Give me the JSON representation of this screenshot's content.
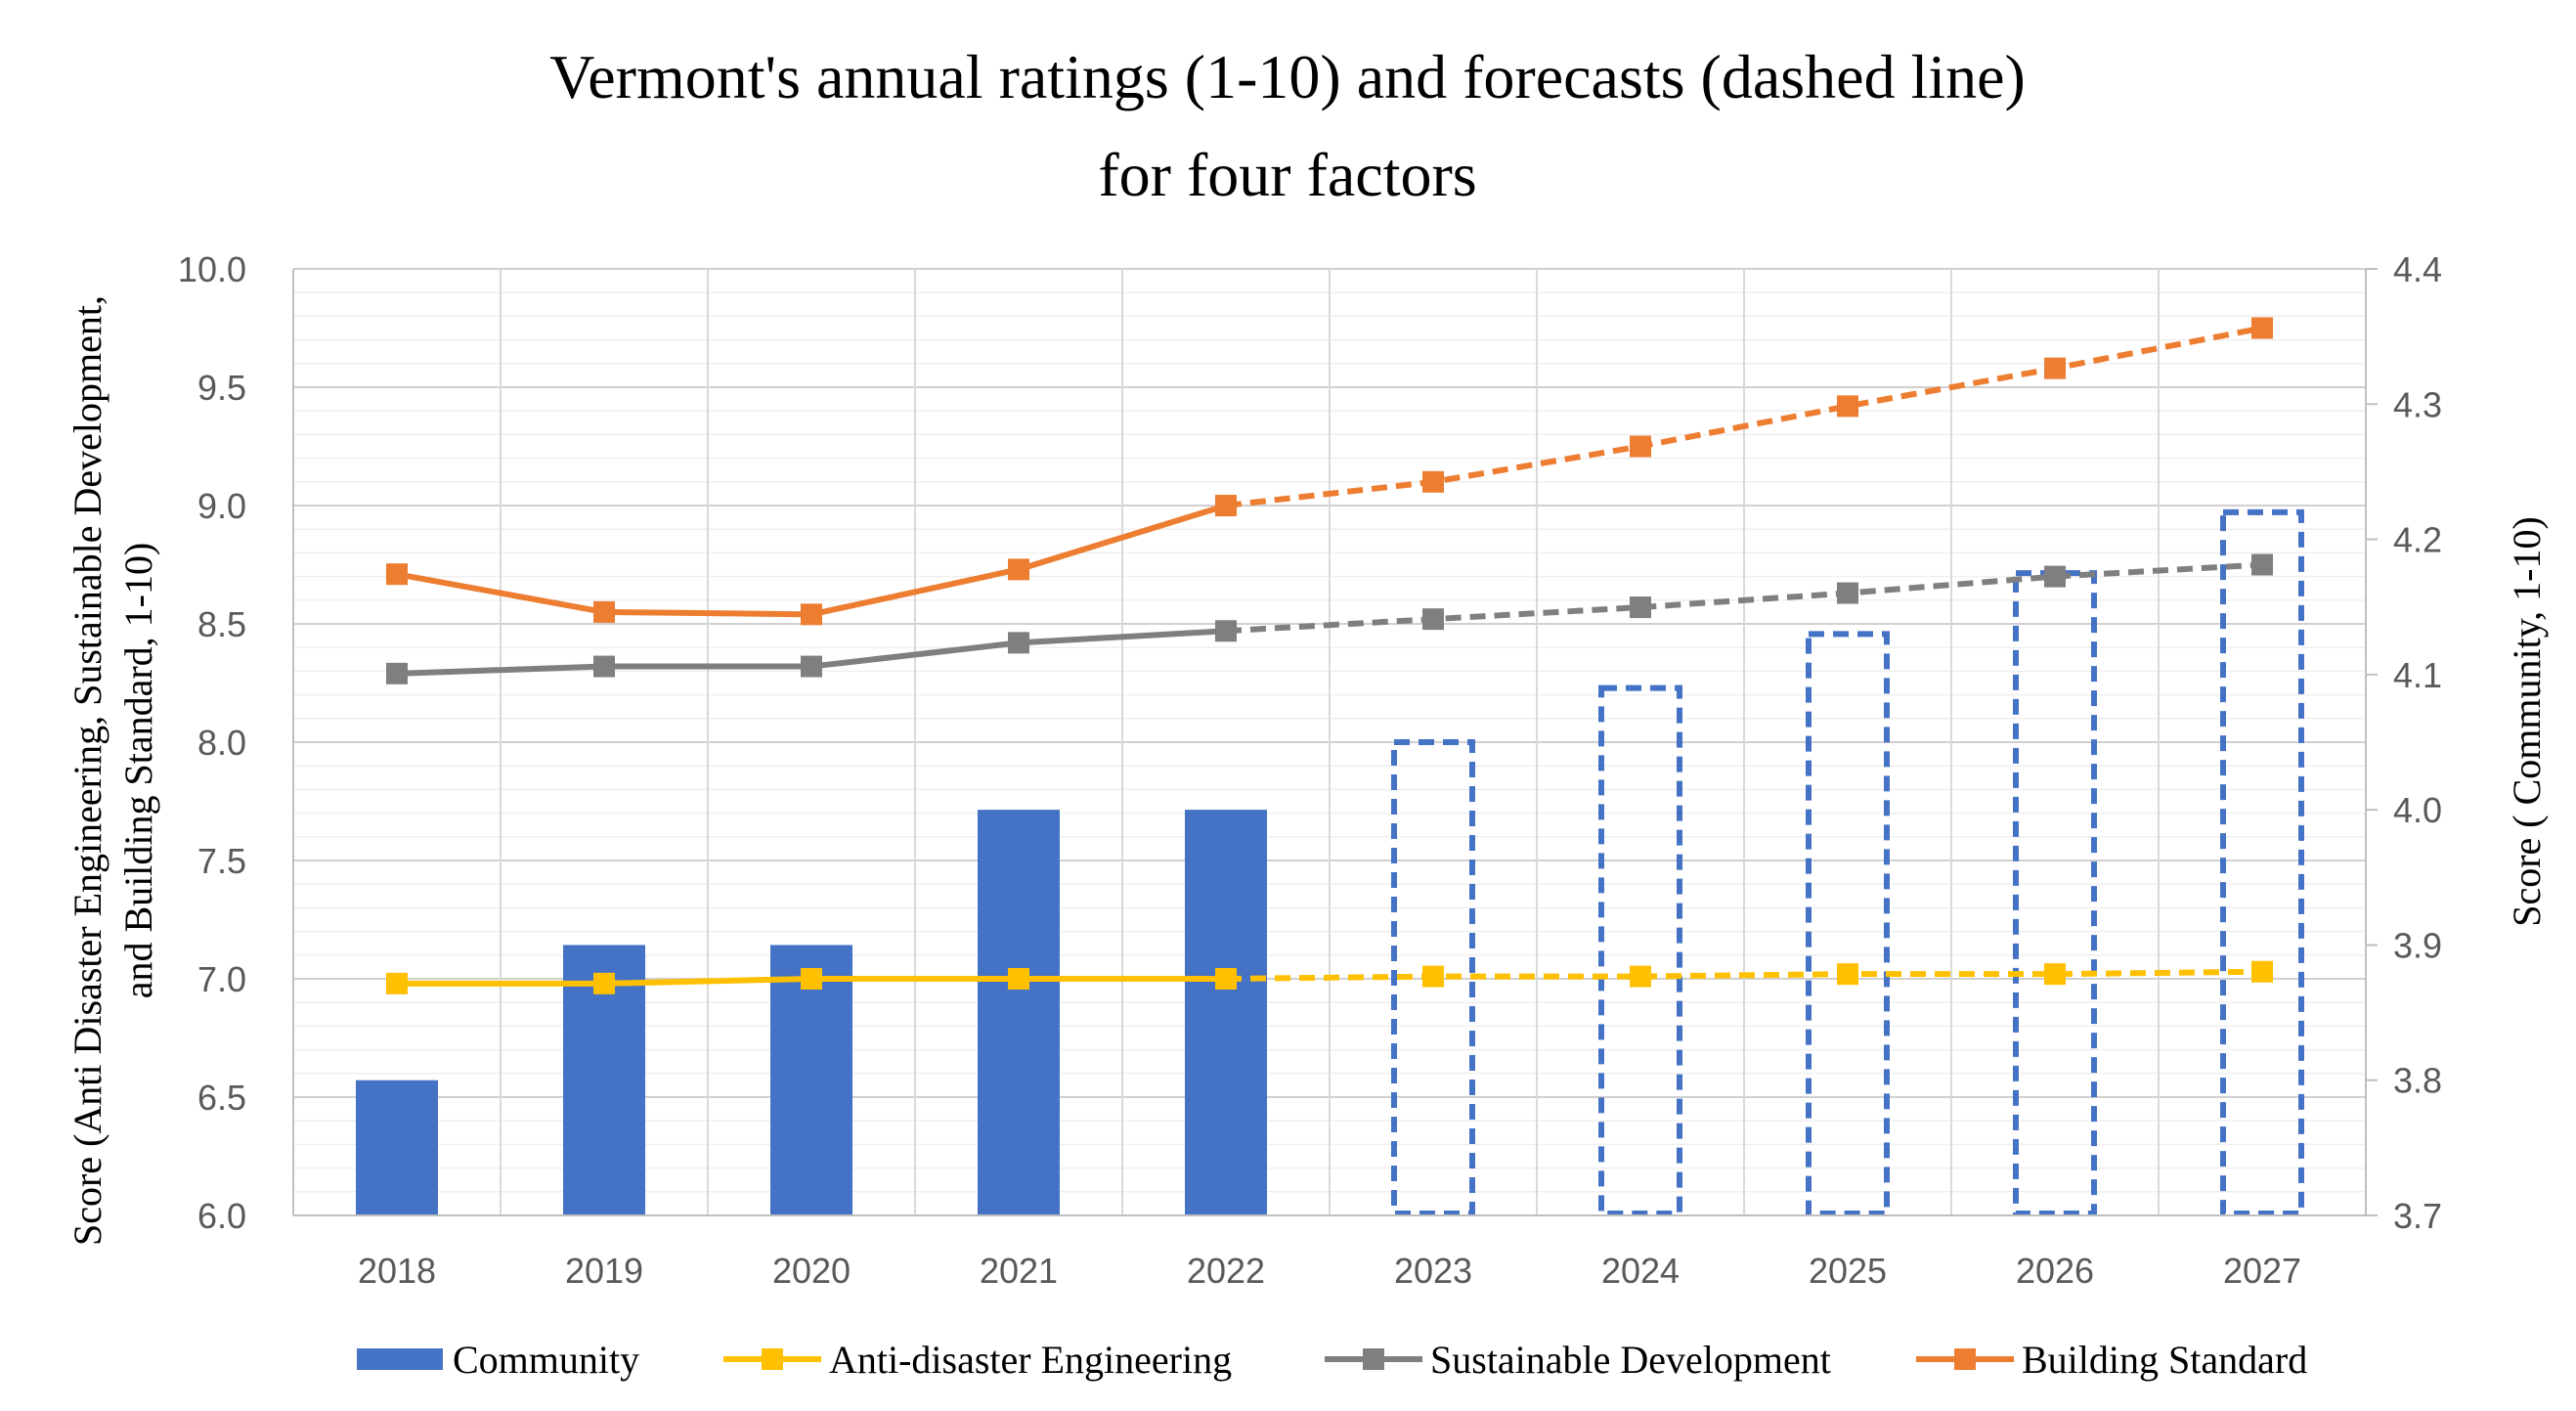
{
  "chart_data": {
    "type": "bar+line",
    "title_line1": "Vermont's annual ratings (1-10) and forecasts (dashed line)",
    "title_line2": "for four factors",
    "ylabel_left_line1": "Score (Anti Disaster Engineering,  Sustainable Development,",
    "ylabel_left_line2": "and Building Standard, 1-10)",
    "ylabel_right": "Score ( Community, 1-10)",
    "categories": [
      "2018",
      "2019",
      "2020",
      "2021",
      "2022",
      "2023",
      "2024",
      "2025",
      "2026",
      "2027"
    ],
    "actual_years_count": 5,
    "left_axis": {
      "min": 6.0,
      "max": 10.0,
      "major_step": 0.5,
      "minor_step": 0.1,
      "tick_labels": [
        "6.0",
        "6.5",
        "7.0",
        "7.5",
        "8.0",
        "8.5",
        "9.0",
        "9.5",
        "10.0"
      ]
    },
    "right_axis": {
      "min": 3.7,
      "max": 4.4,
      "major_step": 0.1,
      "tick_labels": [
        "3.7",
        "3.8",
        "3.9",
        "4.0",
        "4.1",
        "4.2",
        "4.3",
        "4.4"
      ]
    },
    "grid": true,
    "legend_position": "bottom",
    "series": [
      {
        "name": "Community",
        "kind": "bar",
        "axis": "right",
        "color": "#4472C4",
        "values": [
          3.8,
          3.9,
          3.9,
          4.0,
          4.0,
          4.05,
          4.09,
          4.13,
          4.175,
          4.22
        ]
      },
      {
        "name": "Anti-disaster Engineering",
        "kind": "line",
        "axis": "left",
        "color": "#FFC000",
        "values": [
          6.98,
          6.98,
          7.0,
          7.0,
          7.0,
          7.01,
          7.01,
          7.02,
          7.02,
          7.03
        ]
      },
      {
        "name": "Sustainable Development",
        "kind": "line",
        "axis": "left",
        "color": "#7F7F7F",
        "values": [
          8.29,
          8.32,
          8.32,
          8.42,
          8.47,
          8.52,
          8.57,
          8.63,
          8.7,
          8.75
        ]
      },
      {
        "name": "Building Standard",
        "kind": "line",
        "axis": "left",
        "color": "#ED7D31",
        "values": [
          8.71,
          8.55,
          8.54,
          8.73,
          9.0,
          9.1,
          9.25,
          9.42,
          9.58,
          9.75
        ]
      }
    ]
  }
}
